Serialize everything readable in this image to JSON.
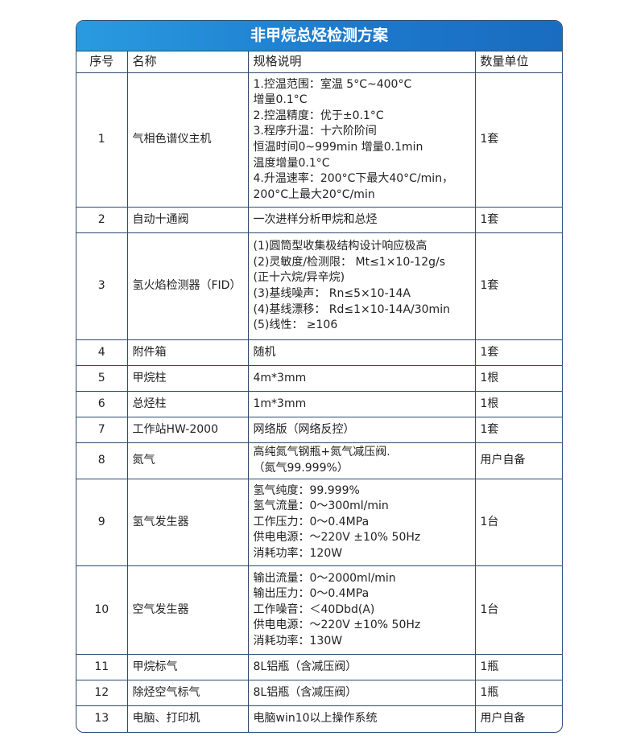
{
  "title": "非甲烷总烃检测方案",
  "headers": [
    "序号",
    "名称",
    "规格说明",
    "数量单位"
  ],
  "rows": [
    {
      "no": "1",
      "name": "气相色谱仪主机",
      "spec": "1.控温范围：室温 5°C~400°C\n增量0.1°C\n2.控温精度：优于±0.1°C\n3.程序升温：十六阶阶间\n恒温时间0~999min 增量0.1min\n温度增量0.1°C\n4.升温速率：200°C下最大40°C/min，\n 200°C上最大20°C/min",
      "qty": "1套"
    },
    {
      "no": "2",
      "name": "自动十通阀",
      "spec": "一次进样分析甲烷和总烃",
      "qty": "1套"
    },
    {
      "no": "3",
      "name": "氢火焰检测器（FID）",
      "spec": "(1)圆筒型收集极结构设计响应极高\n(2)灵敏度/检测限： Mt≤1×10-12g/s\n(正十六烷/异辛烷)\n(3)基线噪声： Rn≤5×10-14A\n(4)基线漂移： Rd≤1×10-14A/30min\n(5)线性： ≥106",
      "qty": "1套"
    },
    {
      "no": "4",
      "name": "附件箱",
      "spec": "随机",
      "qty": "1套"
    },
    {
      "no": "5",
      "name": "甲烷柱",
      "spec": "4m*3mm",
      "qty": "1根"
    },
    {
      "no": "6",
      "name": "总烃柱",
      "spec": "1m*3mm",
      "qty": "1根"
    },
    {
      "no": "7",
      "name": "工作站HW-2000",
      "spec": "网络版（网络反控）",
      "qty": "1套"
    },
    {
      "no": "8",
      "name": "氮气",
      "spec": "高纯氮气钢瓶+氮气减压阀.\n（氮气99.999%）",
      "qty": "用户自备"
    },
    {
      "no": "9",
      "name": "氢气发生器",
      "spec": "氢气纯度：99.999%\n氢气流量：0～300ml/min\n工作压力：0～0.4MPa\n供电电源：～220V ±10% 50Hz\n消耗功率：120W",
      "qty": "1台"
    },
    {
      "no": "10",
      "name": "空气发生器",
      "spec": "输出流量：0～2000ml/min\n输出压力：0～0.4MPa\n工作噪音：＜40Dbd(A)\n供电电源：～220V ±10% 50Hz\n消耗功率：130W",
      "qty": "1台"
    },
    {
      "no": "11",
      "name": "甲烷标气",
      "spec": "8L铝瓶（含减压阀）",
      "qty": "1瓶"
    },
    {
      "no": "12",
      "name": "除烃空气标气",
      "spec": "8L铝瓶（含减压阀）",
      "qty": "1瓶"
    },
    {
      "no": "13",
      "name": "电脑、打印机",
      "spec": "电脑win10以上操作系统",
      "qty": "用户自备"
    }
  ]
}
